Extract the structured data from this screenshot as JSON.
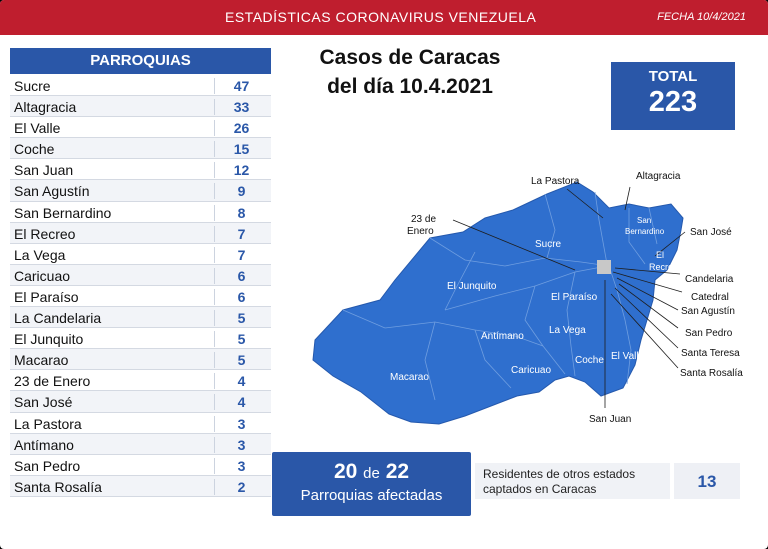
{
  "header": {
    "title": "ESTADÍSTICAS CORONAVIRUS VENEZUELA",
    "date": "FECHA 10/4/2021"
  },
  "parroquias": {
    "heading": "PARROQUIAS",
    "rows": [
      {
        "name": "Sucre",
        "value": "47"
      },
      {
        "name": "Altagracia",
        "value": "33"
      },
      {
        "name": "El Valle",
        "value": "26"
      },
      {
        "name": "Coche",
        "value": "15"
      },
      {
        "name": "San Juan",
        "value": "12"
      },
      {
        "name": "San Agustín",
        "value": "9"
      },
      {
        "name": "San Bernardino",
        "value": "8"
      },
      {
        "name": "El Recreo",
        "value": "7"
      },
      {
        "name": "La Vega",
        "value": "7"
      },
      {
        "name": "Caricuao",
        "value": "6"
      },
      {
        "name": "El Paraíso",
        "value": "6"
      },
      {
        "name": "La Candelaria",
        "value": "5"
      },
      {
        "name": "El Junquito",
        "value": "5"
      },
      {
        "name": "Macarao",
        "value": "5"
      },
      {
        "name": "23 de Enero",
        "value": "4"
      },
      {
        "name": "San José",
        "value": "4"
      },
      {
        "name": "La Pastora",
        "value": "3"
      },
      {
        "name": "Antímano",
        "value": "3"
      },
      {
        "name": "San Pedro",
        "value": "3"
      },
      {
        "name": "Santa Rosalía",
        "value": "2"
      }
    ]
  },
  "title": {
    "line1": "Casos de Caracas",
    "line2": "del día 10.4.2021"
  },
  "total": {
    "label": "TOTAL",
    "value": "223"
  },
  "map": {
    "color": "#2f6fce",
    "labels": {
      "la_pastora": "La Pastora",
      "altagracia": "Altagracia",
      "enero_1": "23 de",
      "enero_2": "Enero",
      "san_bernardino_1": "San",
      "san_bernardino_2": "Bernardino",
      "san_jose": "San José",
      "sucre": "Sucre",
      "el_recreo_1": "El",
      "el_recreo_2": "Recreo",
      "candelaria": "Candelaria",
      "catedral": "Catedral",
      "san_agustin": "San Agustín",
      "el_junquito": "El Junquito",
      "el_paraiso": "El Paraíso",
      "san_pedro": "San Pedro",
      "antimano": "Antímano",
      "la_vega": "La Vega",
      "santa_teresa": "Santa Teresa",
      "santa_rosalia": "Santa Rosalía",
      "coche": "Coche",
      "el_valle": "El Valle",
      "caricuao": "Caricuao",
      "macarao": "Macarao",
      "san_juan": "San Juan"
    }
  },
  "affected": {
    "count": "20",
    "connector": "de",
    "of": "22",
    "label": "Parroquias afectadas"
  },
  "residents": {
    "text_line1": "Residentes de otros estados",
    "text_line2": "captados en Caracas",
    "value": "13"
  },
  "colors": {
    "header_red": "#bf1e2e",
    "accent_blue": "#2a57a8"
  }
}
